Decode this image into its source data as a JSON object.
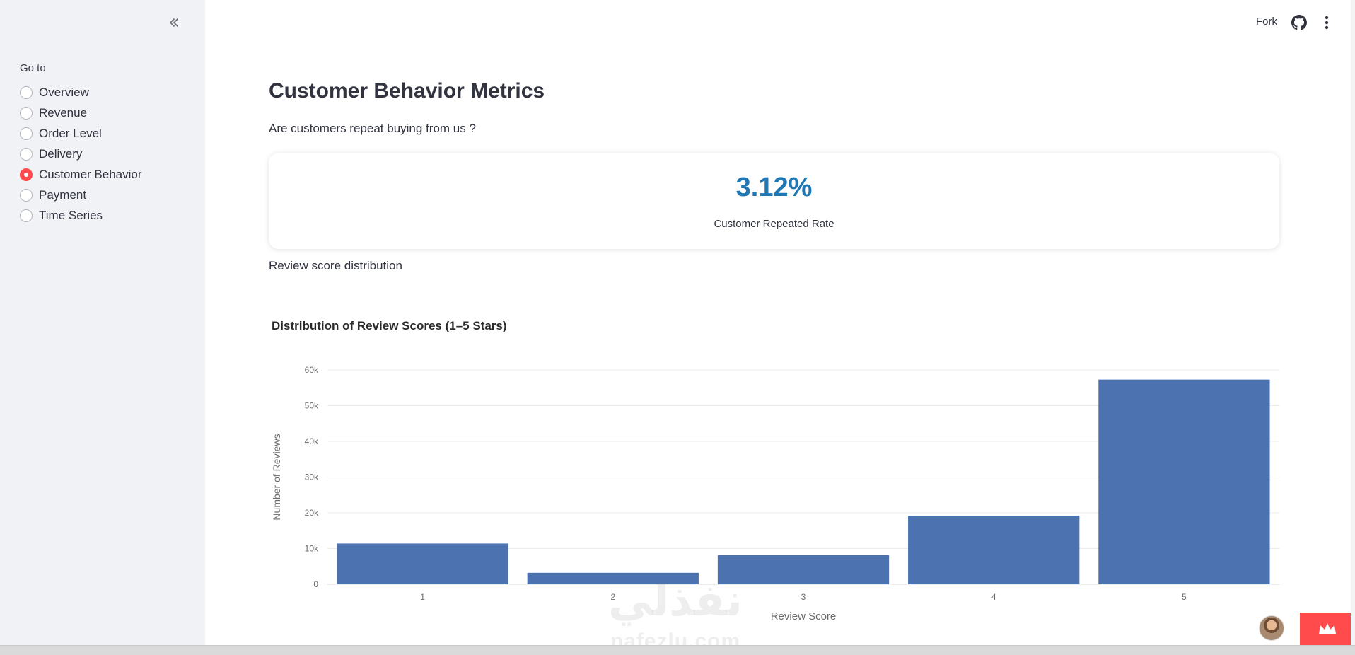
{
  "sidebar": {
    "goto_label": "Go to",
    "items": [
      {
        "label": "Overview",
        "selected": false
      },
      {
        "label": "Revenue",
        "selected": false
      },
      {
        "label": "Order Level",
        "selected": false
      },
      {
        "label": "Delivery",
        "selected": false
      },
      {
        "label": "Customer Behavior",
        "selected": true
      },
      {
        "label": "Payment",
        "selected": false
      },
      {
        "label": "Time Series",
        "selected": false
      }
    ]
  },
  "header": {
    "fork_label": "Fork",
    "github_icon": "github-icon",
    "menu_icon": "more-vertical-icon"
  },
  "main": {
    "title": "Customer Behavior Metrics",
    "subtitle": "Are customers repeat buying from us ?",
    "metric": {
      "value": "3.12%",
      "label": "Customer Repeated Rate"
    },
    "section_label": "Review score distribution"
  },
  "chart_data": {
    "type": "bar",
    "title": "Distribution of Review Scores (1–5 Stars)",
    "xlabel": "Review Score",
    "ylabel": "Number of Reviews",
    "categories": [
      "1",
      "2",
      "3",
      "4",
      "5"
    ],
    "values": [
      11400,
      3200,
      8200,
      19200,
      57300
    ],
    "ylim": [
      0,
      60000
    ],
    "yticks": [
      {
        "value": 0,
        "label": "0"
      },
      {
        "value": 10000,
        "label": "10k"
      },
      {
        "value": 20000,
        "label": "20k"
      },
      {
        "value": 30000,
        "label": "30k"
      },
      {
        "value": 40000,
        "label": "40k"
      },
      {
        "value": 50000,
        "label": "50k"
      },
      {
        "value": 60000,
        "label": "60k"
      }
    ],
    "grid": true,
    "bar_color": "#4c72b0"
  },
  "watermark": {
    "arabic": "نفذلي",
    "latin": "nafezlu.com"
  },
  "colors": {
    "accent": "#ff4b4b",
    "metric": "#1f77b4",
    "sidebar_bg": "#f0f2f6"
  }
}
